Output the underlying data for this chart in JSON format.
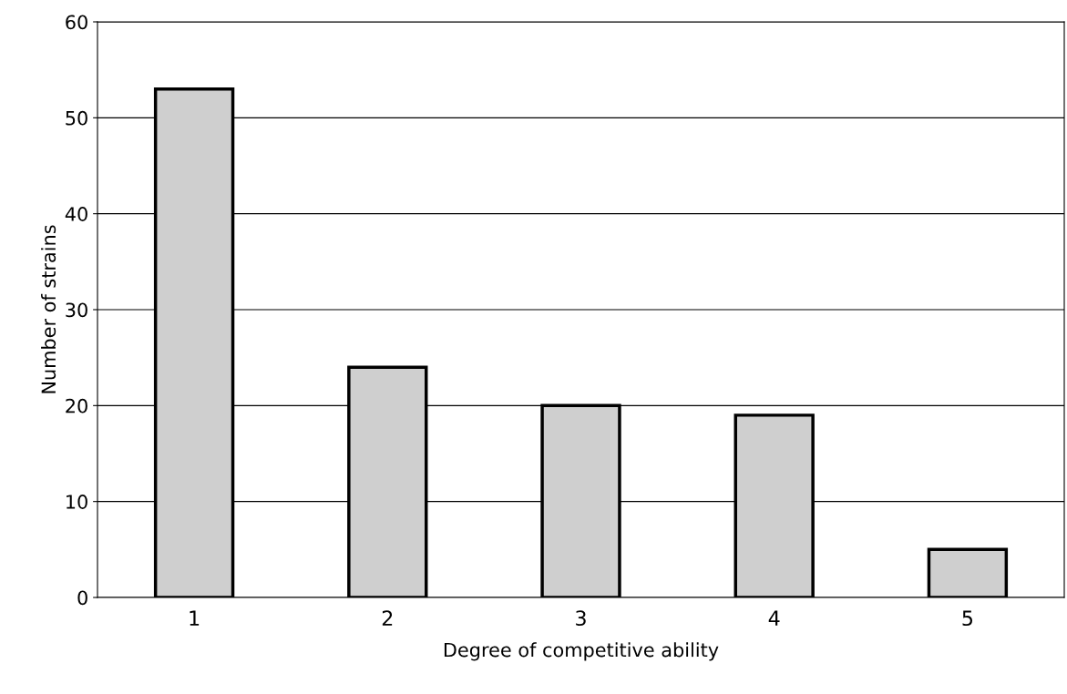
{
  "chart_data": {
    "type": "bar",
    "xlabel": "Degree of competitive ability",
    "ylabel": "Number of strains",
    "categories": [
      "1",
      "2",
      "3",
      "4",
      "5"
    ],
    "values": [
      53,
      24,
      20,
      19,
      5
    ],
    "color": "#cfcfcf",
    "ylim": [
      0,
      60
    ],
    "yticks": [
      0,
      10,
      20,
      30,
      40,
      50,
      60
    ],
    "grid": "y"
  }
}
